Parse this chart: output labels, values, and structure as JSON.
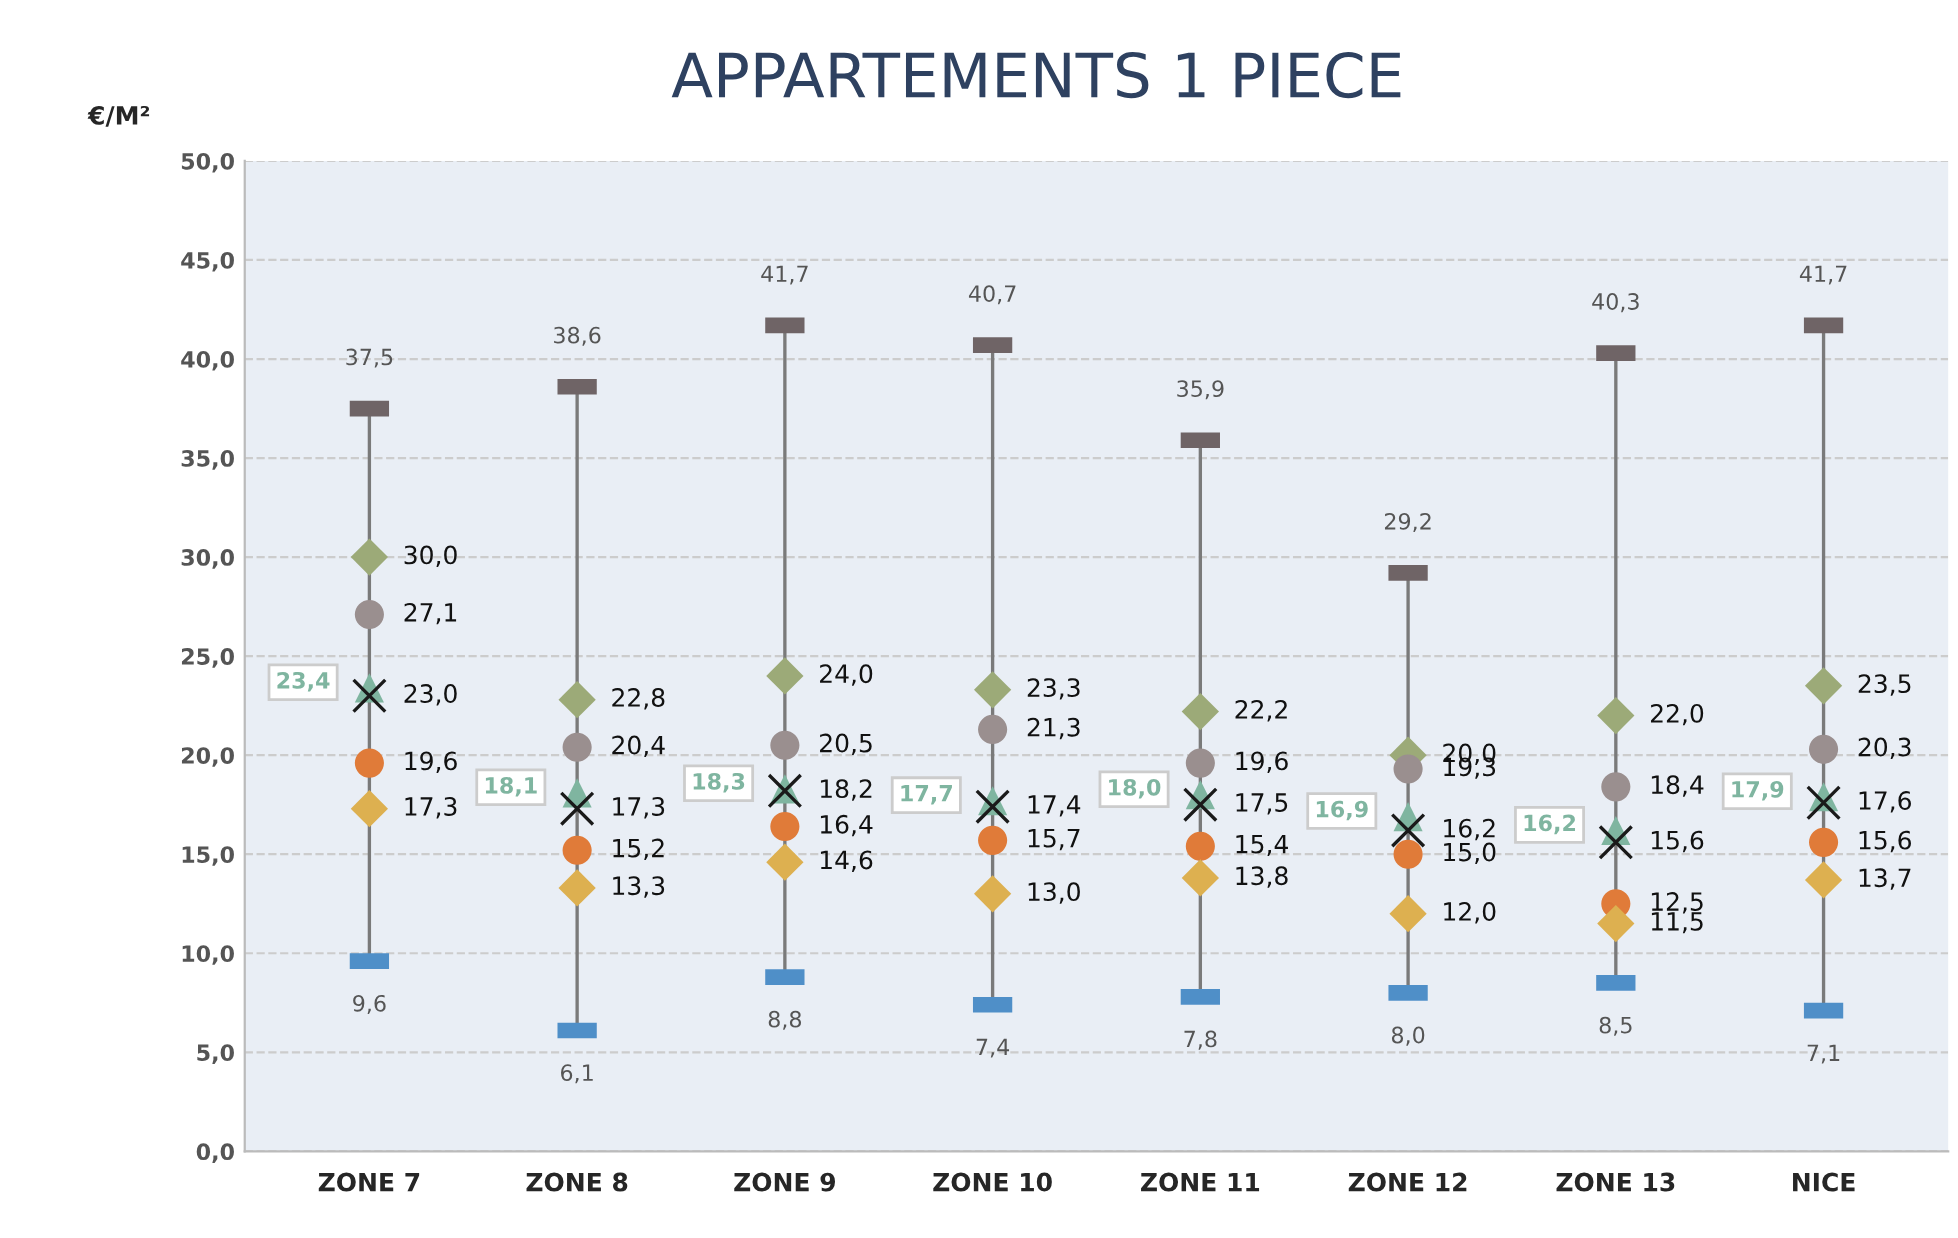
{
  "chart_data": {
    "type": "scatter",
    "title": "APPARTEMENTS 1 PIECE",
    "ylabel": "€/M²",
    "categories": [
      "ZONE 7",
      "ZONE 8",
      "ZONE 9",
      "ZONE 10",
      "ZONE 11",
      "ZONE 12",
      "ZONE 13",
      "NICE"
    ],
    "ylim": [
      0,
      50
    ],
    "yticks": [
      {
        "value": 0,
        "label": "0,0"
      },
      {
        "value": 5,
        "label": "5,0"
      },
      {
        "value": 10,
        "label": "10,0"
      },
      {
        "value": 15,
        "label": "15,0"
      },
      {
        "value": 20,
        "label": "20,0"
      },
      {
        "value": 25,
        "label": "25,0"
      },
      {
        "value": 30,
        "label": "30,0"
      },
      {
        "value": 35,
        "label": "35,0"
      },
      {
        "value": 40,
        "label": "40,0"
      },
      {
        "value": 45,
        "label": "45,0"
      },
      {
        "value": 50,
        "label": "50,0"
      }
    ],
    "grid": "y",
    "legend": false,
    "series": [
      {
        "color": "#6f6466",
        "marker": "square",
        "values": [
          37.5,
          38.6,
          41.7,
          40.7,
          35.9,
          29.2,
          40.3,
          41.7
        ],
        "value_labels": [
          "37,5",
          "38,6",
          "41,7",
          "40,7",
          "35,9",
          "29,2",
          "40,3",
          "41,7"
        ]
      },
      {
        "color": "#4f8fc8",
        "marker": "square",
        "values": [
          9.6,
          6.1,
          8.8,
          7.4,
          7.8,
          8.0,
          8.5,
          7.1
        ],
        "value_labels": [
          "9,6",
          "6,1",
          "8,8",
          "7,4",
          "7,8",
          "8,0",
          "8,5",
          "7,1"
        ]
      },
      {
        "color": "#9caa78",
        "marker": "diamond",
        "values": [
          30.0,
          22.8,
          24.0,
          23.3,
          22.2,
          20.0,
          22.0,
          23.5
        ],
        "value_labels": [
          "30,0",
          "22,8",
          "24,0",
          "23,3",
          "22,2",
          "20,0",
          "22,0",
          "23,5"
        ]
      },
      {
        "color": "#9a8f8f",
        "marker": "circle",
        "values": [
          27.1,
          20.4,
          20.5,
          21.3,
          19.6,
          19.3,
          18.4,
          20.3
        ],
        "value_labels": [
          "27,1",
          "20,4",
          "20,5",
          "21,3",
          "19,6",
          "19,3",
          "18,4",
          "20,3"
        ]
      },
      {
        "color": "#7fb5a0",
        "marker": "triangle",
        "values": [
          23.4,
          18.1,
          18.3,
          17.7,
          18.0,
          16.9,
          16.2,
          17.9
        ],
        "value_labels": [
          "23,4",
          "18,1",
          "18,3",
          "17,7",
          "18,0",
          "16,9",
          "16,2",
          "17,9"
        ]
      },
      {
        "color": "#1a1a1a",
        "marker": "cross",
        "values": [
          23.0,
          17.3,
          18.2,
          17.4,
          17.5,
          16.2,
          15.6,
          17.6
        ],
        "value_labels": [
          "23,0",
          "17,3",
          "18,2",
          "17,4",
          "17,5",
          "16,2",
          "15,6",
          "17,6"
        ]
      },
      {
        "color": "#e07b39",
        "marker": "circle",
        "values": [
          19.6,
          15.2,
          16.4,
          15.7,
          15.4,
          15.0,
          12.5,
          15.6
        ],
        "value_labels": [
          "19,6",
          "15,2",
          "16,4",
          "15,7",
          "15,4",
          "15,0",
          "12,5",
          "15,6"
        ]
      },
      {
        "color": "#ddb050",
        "marker": "diamond",
        "values": [
          17.3,
          13.3,
          14.6,
          13.0,
          13.8,
          12.0,
          11.5,
          13.7
        ],
        "value_labels": [
          "17,3",
          "13,3",
          "14,6",
          "13,0",
          "13,8",
          "12,0",
          "11,5",
          "13,7"
        ]
      }
    ]
  }
}
